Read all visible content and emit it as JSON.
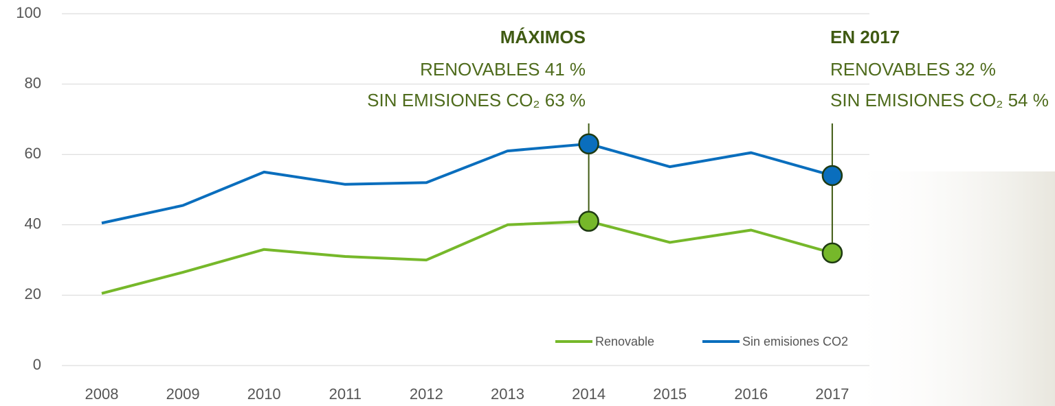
{
  "chart_data": {
    "type": "line",
    "categories": [
      "2008",
      "2009",
      "2010",
      "2011",
      "2012",
      "2013",
      "2014",
      "2015",
      "2016",
      "2017"
    ],
    "series": [
      {
        "name": "Renovable",
        "color": "#76b82a",
        "values": [
          20.5,
          26.5,
          33,
          31,
          30,
          40,
          41,
          35,
          38.5,
          32
        ]
      },
      {
        "name": "Sin emisiones CO2",
        "color": "#0a6ebd",
        "values": [
          40.5,
          45.5,
          55,
          51.5,
          52,
          61,
          63,
          56.5,
          60.5,
          54
        ]
      }
    ],
    "ylim": [
      0,
      100
    ],
    "yticks": [
      0,
      20,
      40,
      60,
      80,
      100
    ],
    "grid": true,
    "annotations": [
      {
        "title": "MÁXIMOS",
        "lines": [
          "RENOVABLES 41 %",
          "SIN EMISIONES CO₂ 63 %"
        ]
      },
      {
        "title": "EN 2017",
        "lines": [
          "RENOVABLES 32 %",
          "SIN EMISIONES CO₂ 54 %"
        ]
      }
    ]
  }
}
